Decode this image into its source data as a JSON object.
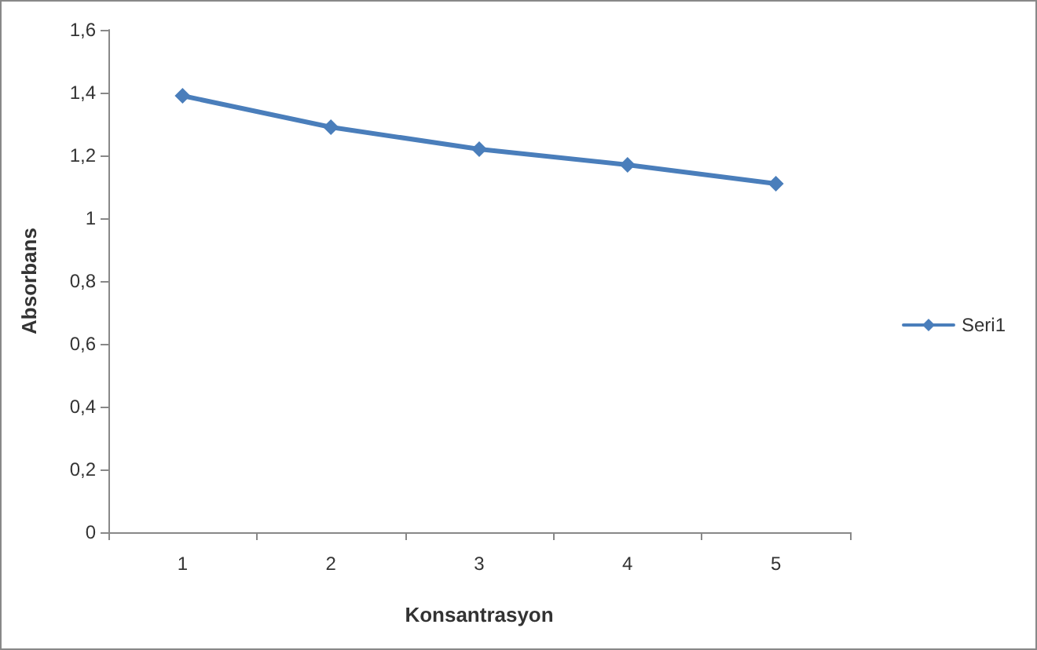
{
  "chart_data": {
    "type": "line",
    "xlabel": "Konsantrasyon",
    "ylabel": "Absorbans",
    "categories": [
      "1",
      "2",
      "3",
      "4",
      "5"
    ],
    "series": [
      {
        "name": "Seri1",
        "color": "#4a7ebb",
        "values": [
          1.39,
          1.29,
          1.22,
          1.17,
          1.11
        ]
      }
    ],
    "ylim": [
      0,
      1.6
    ],
    "yticks": [
      0,
      {
        "value": 0.2,
        "label": "0,2"
      },
      {
        "value": 0.4,
        "label": "0,4"
      },
      {
        "value": 0.6,
        "label": "0,6"
      },
      {
        "value": 0.8,
        "label": "0,8"
      },
      1,
      {
        "value": 1.2,
        "label": "1,2"
      },
      {
        "value": 1.4,
        "label": "1,4"
      },
      {
        "value": 1.6,
        "label": "1,6"
      }
    ],
    "grid": false,
    "legend": "right",
    "marker": "diamond",
    "line_style": "solid"
  }
}
